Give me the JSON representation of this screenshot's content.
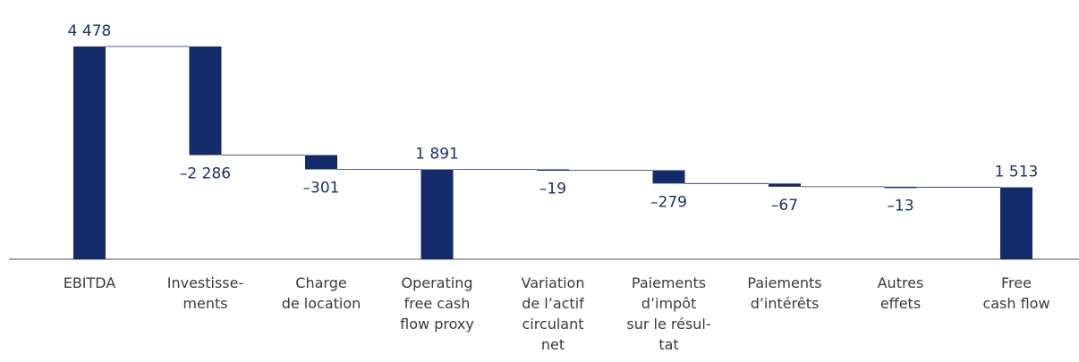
{
  "chart_data": {
    "type": "waterfall",
    "categories": [
      [
        "EBITDA"
      ],
      [
        "Investisse-",
        "ments"
      ],
      [
        "Charge",
        "de location"
      ],
      [
        "Operating",
        "free cash",
        "flow proxy"
      ],
      [
        "Variation",
        "de l’actif",
        "circulant",
        "net"
      ],
      [
        "Paiements",
        "d’impôt",
        "sur le résul-",
        "tat"
      ],
      [
        "Paiements",
        "d’intérêts"
      ],
      [
        "Autres",
        "effets"
      ],
      [
        "Free",
        "cash flow"
      ]
    ],
    "measure": [
      "total",
      "relative",
      "relative",
      "total",
      "relative",
      "relative",
      "relative",
      "relative",
      "total"
    ],
    "values": [
      4478,
      -2286,
      -301,
      1891,
      -19,
      -279,
      -67,
      -13,
      1513
    ],
    "value_labels": [
      "4 478",
      "–2 286",
      "–301",
      "1 891",
      "–19",
      "–279",
      "–67",
      "–13",
      "1 513"
    ],
    "color": "#142b6b"
  }
}
